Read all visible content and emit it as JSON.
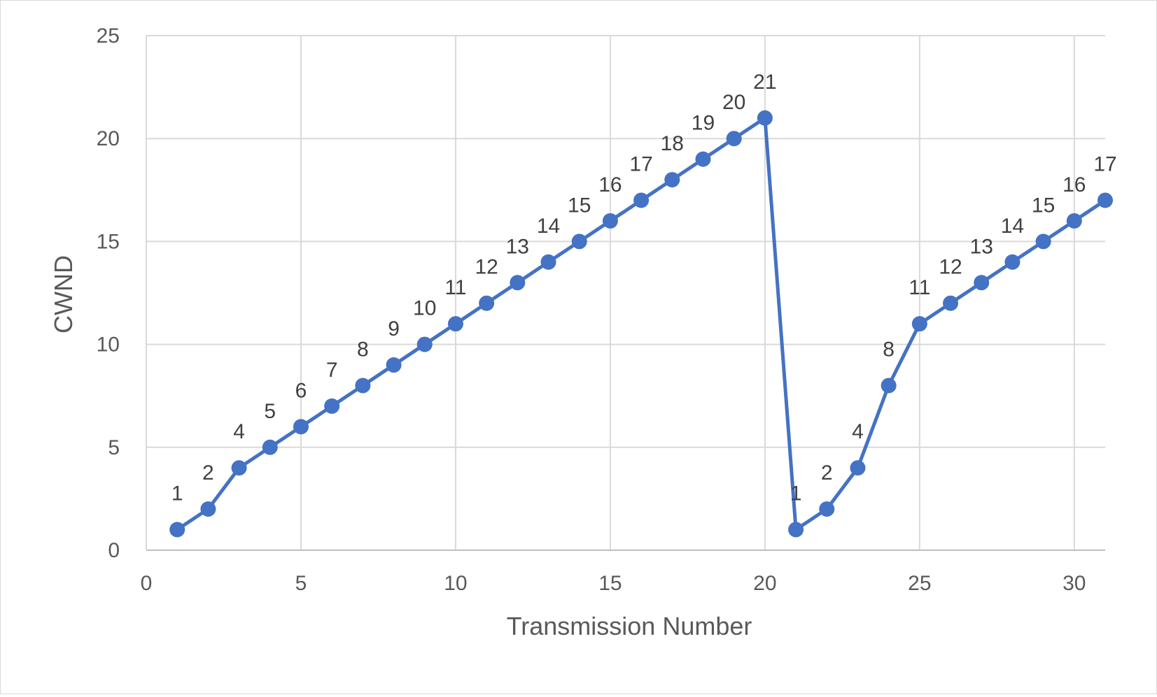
{
  "chart_data": {
    "type": "line",
    "title": "",
    "xlabel": "Transmission Number",
    "ylabel": "CWND",
    "xlim": [
      0,
      31
    ],
    "ylim": [
      0,
      25
    ],
    "x_ticks": [
      0,
      5,
      10,
      15,
      20,
      25,
      30
    ],
    "y_ticks": [
      0,
      5,
      10,
      15,
      20,
      25
    ],
    "grid": true,
    "legend": "none",
    "series_color": "#4472C4",
    "series": [
      {
        "x": [
          1,
          2,
          3,
          4,
          5,
          6,
          7,
          8,
          9,
          10,
          11,
          12,
          13,
          14,
          15,
          16,
          17,
          18,
          19,
          20,
          21,
          22,
          23,
          24,
          25,
          26,
          27,
          28,
          29,
          30,
          31
        ],
        "values": [
          1,
          2,
          4,
          5,
          6,
          7,
          8,
          9,
          10,
          11,
          12,
          13,
          14,
          15,
          16,
          17,
          18,
          19,
          20,
          21,
          1,
          2,
          4,
          8,
          11,
          12,
          13,
          14,
          15,
          16,
          17
        ]
      }
    ]
  }
}
